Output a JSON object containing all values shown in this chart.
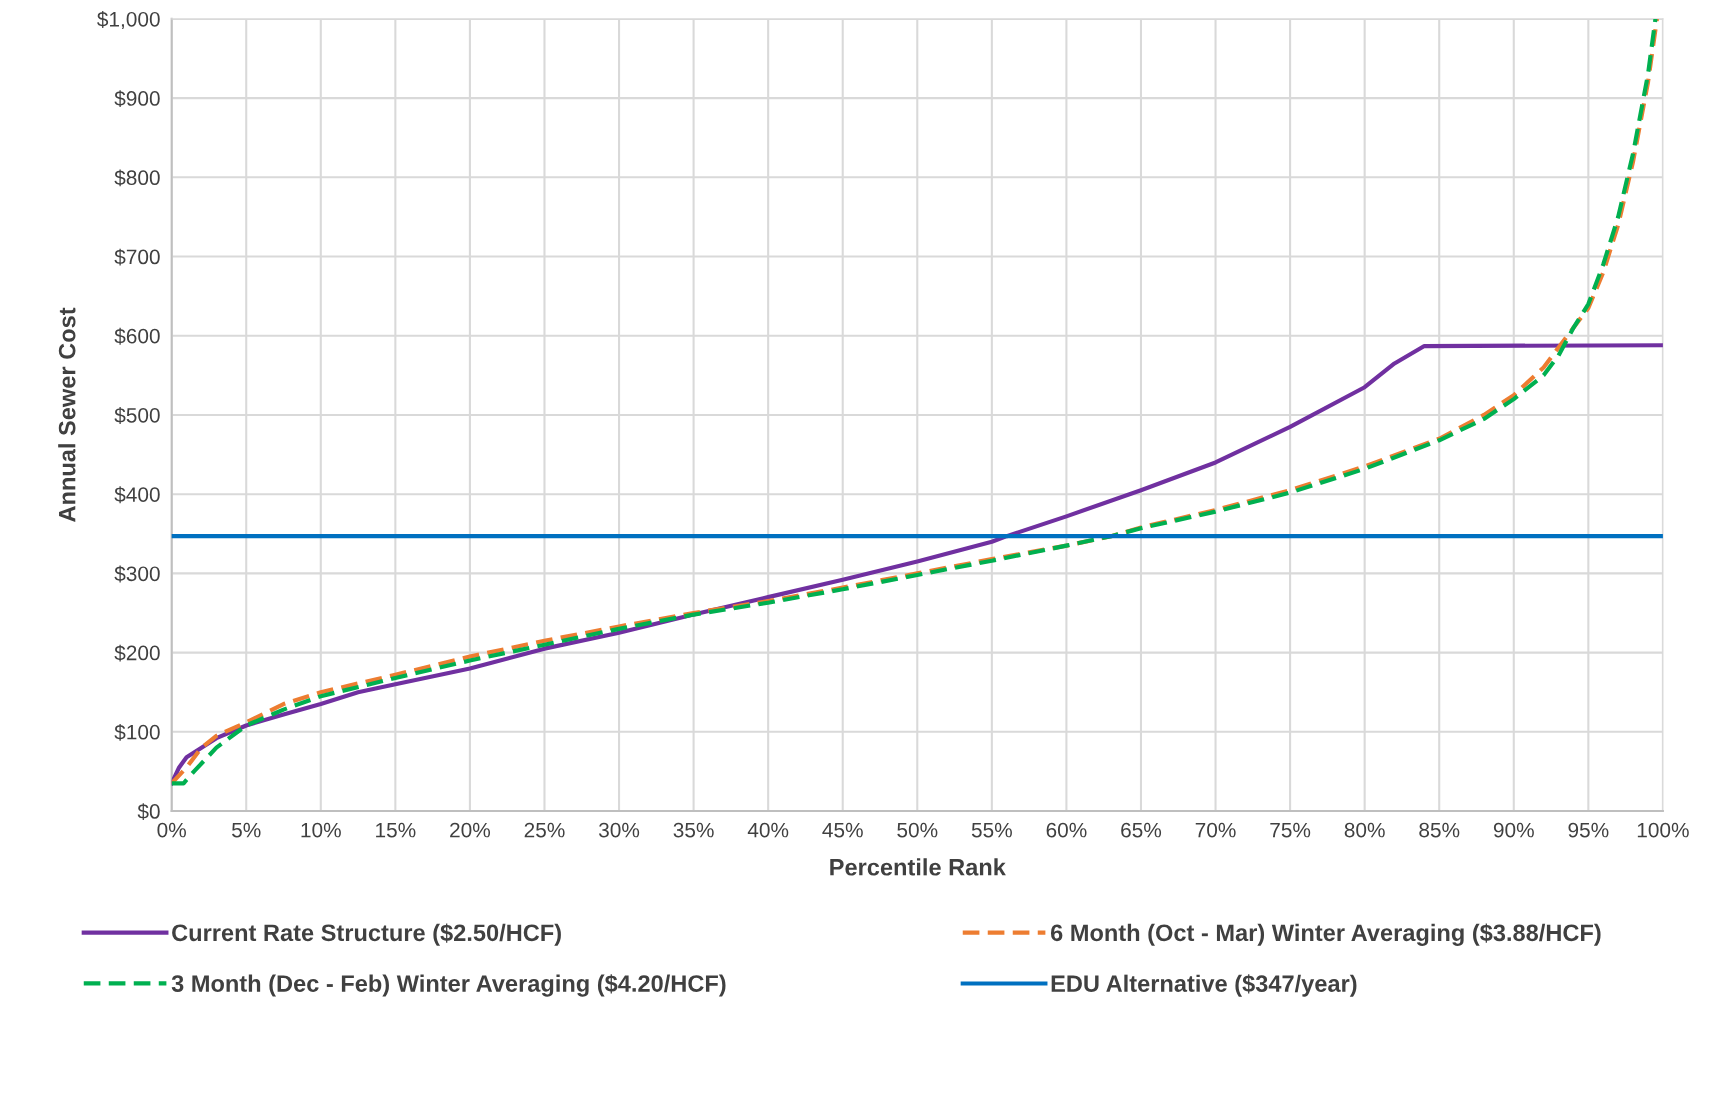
{
  "chart_data": {
    "type": "line",
    "xlabel": "Percentile Rank",
    "ylabel": "Annual Sewer Cost",
    "xlim": [
      0,
      100
    ],
    "ylim": [
      0,
      1000
    ],
    "xticks": [
      {
        "value": 0,
        "label": "0%"
      },
      {
        "value": 5,
        "label": "5%"
      },
      {
        "value": 10,
        "label": "10%"
      },
      {
        "value": 15,
        "label": "15%"
      },
      {
        "value": 20,
        "label": "20%"
      },
      {
        "value": 25,
        "label": "25%"
      },
      {
        "value": 30,
        "label": "30%"
      },
      {
        "value": 35,
        "label": "35%"
      },
      {
        "value": 40,
        "label": "40%"
      },
      {
        "value": 45,
        "label": "45%"
      },
      {
        "value": 50,
        "label": "50%"
      },
      {
        "value": 55,
        "label": "55%"
      },
      {
        "value": 60,
        "label": "60%"
      },
      {
        "value": 65,
        "label": "65%"
      },
      {
        "value": 70,
        "label": "70%"
      },
      {
        "value": 75,
        "label": "75%"
      },
      {
        "value": 80,
        "label": "80%"
      },
      {
        "value": 85,
        "label": "85%"
      },
      {
        "value": 90,
        "label": "90%"
      },
      {
        "value": 95,
        "label": "95%"
      },
      {
        "value": 100,
        "label": "100%"
      }
    ],
    "yticks": [
      {
        "value": 0,
        "label": "$0"
      },
      {
        "value": 100,
        "label": "$100"
      },
      {
        "value": 200,
        "label": "$200"
      },
      {
        "value": 300,
        "label": "$300"
      },
      {
        "value": 400,
        "label": "$400"
      },
      {
        "value": 500,
        "label": "$500"
      },
      {
        "value": 600,
        "label": "$600"
      },
      {
        "value": 700,
        "label": "$700"
      },
      {
        "value": 800,
        "label": "$800"
      },
      {
        "value": 900,
        "label": "$900"
      },
      {
        "value": 1000,
        "label": "$1,000"
      }
    ],
    "grid": true,
    "legend": "bottom",
    "marker": "none",
    "series": [
      {
        "name": "Current Rate Structure ($2.50/HCF)",
        "color": "#7030a0",
        "line_style": "solid",
        "x": [
          0,
          0.5,
          1,
          2,
          3,
          5,
          7.5,
          10,
          12.5,
          15,
          20,
          25,
          30,
          35,
          40,
          45,
          50,
          55,
          56,
          60,
          65,
          70,
          75,
          80,
          82,
          84,
          100
        ],
        "values": [
          35,
          55,
          68,
          80,
          92,
          108,
          122,
          135,
          150,
          160,
          180,
          205,
          225,
          248,
          270,
          292,
          315,
          340,
          347,
          372,
          405,
          440,
          485,
          535,
          565,
          587,
          588
        ]
      },
      {
        "name": "6 Month (Oct - Mar) Winter Averaging ($3.88/HCF)",
        "color": "#ed7d31",
        "line_style": "dashed",
        "x": [
          0,
          1,
          2,
          3,
          5,
          7.5,
          10,
          15,
          20,
          25,
          30,
          35,
          40,
          45,
          50,
          55,
          60,
          63,
          65,
          70,
          75,
          80,
          85,
          88,
          90,
          92,
          93,
          94,
          95,
          96,
          97,
          98,
          99,
          99.6
        ],
        "values": [
          35,
          55,
          80,
          95,
          112,
          135,
          150,
          172,
          195,
          215,
          233,
          250,
          265,
          282,
          300,
          318,
          335,
          347,
          358,
          380,
          405,
          435,
          470,
          500,
          525,
          560,
          585,
          610,
          635,
          680,
          740,
          820,
          920,
          1000
        ]
      },
      {
        "name": "3 Month (Dec - Feb) Winter Averaging ($4.20/HCF)",
        "color": "#00b050",
        "line_style": "dashed",
        "x": [
          0,
          0.8,
          1.5,
          3,
          5,
          7.5,
          10,
          15,
          20,
          25,
          30,
          35,
          40,
          45,
          50,
          55,
          60,
          63,
          65,
          70,
          75,
          80,
          85,
          88,
          90,
          92,
          93,
          94,
          95,
          96,
          97,
          98,
          99,
          99.5
        ],
        "values": [
          35,
          35,
          50,
          80,
          108,
          128,
          145,
          168,
          190,
          210,
          230,
          248,
          263,
          280,
          298,
          316,
          335,
          347,
          357,
          378,
          402,
          432,
          468,
          495,
          520,
          550,
          575,
          610,
          640,
          690,
          750,
          830,
          930,
          1000
        ]
      },
      {
        "name": "EDU Alternative ($347/year)",
        "color": "#0070c0",
        "line_style": "solid",
        "x": [
          0,
          100
        ],
        "values": [
          347,
          347
        ]
      }
    ]
  }
}
